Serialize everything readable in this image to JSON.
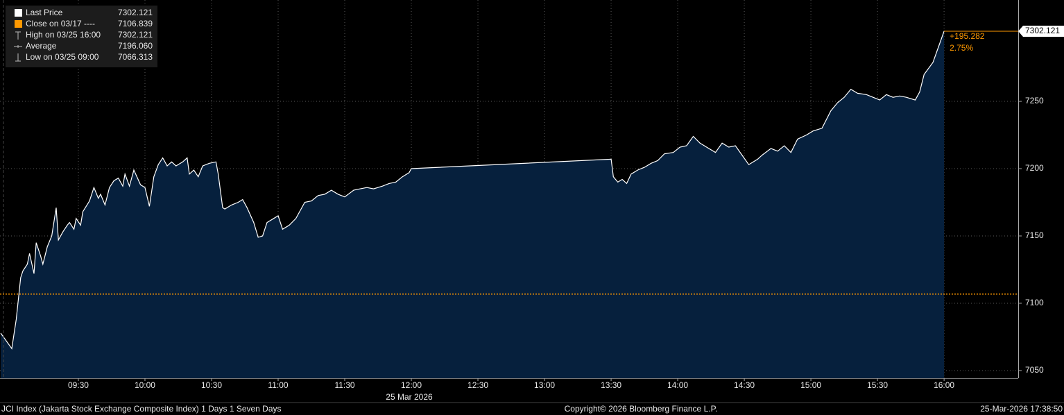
{
  "chart_data": {
    "type": "line",
    "x": [
      535,
      540,
      542,
      544,
      545,
      547,
      548,
      550,
      551,
      553,
      554,
      556,
      558,
      560,
      561,
      563,
      565,
      566,
      568,
      569,
      571,
      572,
      575,
      577,
      579,
      580,
      582,
      584,
      586,
      588,
      590,
      591,
      593,
      595,
      598,
      600,
      602,
      604,
      606,
      608,
      610,
      612,
      614,
      617,
      619,
      620,
      622,
      624,
      626,
      629,
      632,
      633,
      635,
      636,
      639,
      642,
      644,
      646,
      649,
      651,
      653,
      655,
      658,
      660,
      662,
      665,
      668,
      672,
      675,
      678,
      681,
      684,
      687,
      690,
      694,
      697,
      700,
      703,
      707,
      710,
      713,
      716,
      719,
      720,
      810,
      811,
      813,
      815,
      817,
      819,
      822,
      825,
      828,
      831,
      834,
      838,
      841,
      844,
      847,
      850,
      853,
      857,
      860,
      863,
      866,
      869,
      872,
      876,
      878,
      882,
      885,
      888,
      891,
      894,
      898,
      901,
      905,
      909,
      912,
      915,
      918,
      921,
      925,
      928,
      931,
      934,
      937,
      940,
      943,
      947,
      949,
      951,
      955,
      960
    ],
    "series": [
      {
        "name": "Last Price",
        "color": "#ffffff",
        "fill": "#06203d",
        "values": [
          7077.8,
          7066.313,
          7088,
          7119,
          7124,
          7129,
          7137,
          7122,
          7145,
          7135,
          7129,
          7142,
          7150,
          7171,
          7147,
          7153,
          7158,
          7160,
          7155,
          7163,
          7158,
          7168,
          7176,
          7186,
          7178,
          7181,
          7173,
          7186,
          7191,
          7193,
          7187,
          7196,
          7187,
          7199,
          7188,
          7186,
          7172,
          7194,
          7203,
          7208,
          7202,
          7205,
          7202,
          7205,
          7208,
          7196,
          7199,
          7194,
          7202,
          7204,
          7205,
          7196,
          7171,
          7170,
          7173,
          7175,
          7177,
          7171,
          7160,
          7149,
          7150,
          7160,
          7163,
          7165,
          7155,
          7158,
          7163,
          7175,
          7176,
          7180,
          7181,
          7184,
          7181,
          7179,
          7184,
          7185,
          7186,
          7185,
          7187,
          7189,
          7190,
          7194,
          7197,
          7200,
          7207,
          7194,
          7190,
          7192,
          7189,
          7196,
          7199,
          7201,
          7204,
          7206,
          7211,
          7212,
          7216,
          7217,
          7224,
          7219,
          7216,
          7212,
          7219,
          7216,
          7217,
          7210,
          7203,
          7207,
          7210,
          7215,
          7213,
          7217,
          7212,
          7222,
          7225,
          7228,
          7230,
          7243,
          7249,
          7253,
          7259,
          7256,
          7255,
          7253,
          7251,
          7255,
          7253,
          7254,
          7253,
          7251,
          7257,
          7270,
          7279,
          7302.121
        ]
      }
    ],
    "legend": [
      {
        "name": "Last Price",
        "value": 7302.121
      },
      {
        "name": "Close on 03/17 ----",
        "value": 7106.839,
        "color": "#ff9900"
      },
      {
        "name": "High on 03/25 16:00",
        "value": 7302.121
      },
      {
        "name": "Average",
        "value": {
          "value": 7196.06,
          "label": "7196.060"
        }
      },
      {
        "name": "Low on 03/25 09:00",
        "value": 7066.313
      }
    ],
    "change": {
      "value": 195.282,
      "label": "+195.282"
    },
    "change_pct": {
      "value": 2.75,
      "label": "2.75%"
    },
    "xlim": [
      534.7,
      993.4
    ],
    "xticks": [
      {
        "value": 570,
        "label": "09:30"
      },
      {
        "value": 600,
        "label": "10:00"
      },
      {
        "value": 630,
        "label": "10:30"
      },
      {
        "value": 660,
        "label": "11:00"
      },
      {
        "value": 690,
        "label": "11:30"
      },
      {
        "value": 720,
        "label": "12:00"
      },
      {
        "value": 750,
        "label": "12:30"
      },
      {
        "value": 780,
        "label": "13:00"
      },
      {
        "value": 810,
        "label": "13:30"
      },
      {
        "value": 840,
        "label": "14:00"
      },
      {
        "value": 870,
        "label": "14:30"
      },
      {
        "value": 900,
        "label": "15:00"
      },
      {
        "value": 930,
        "label": "15:30"
      },
      {
        "value": 960,
        "label": "16:00"
      }
    ],
    "ylim": [
      7044.3,
      7325.3
    ],
    "yticks": [
      7050,
      7100,
      7150,
      7200,
      7250
    ],
    "grid": true,
    "x_date_label": "25 Mar 2026",
    "footer_left": "JCI Index (Jakarta Stock Exchange Composite Index) 1 Days 1 Seven Days",
    "footer_center": "Copyright© 2026 Bloomberg Finance L.P.",
    "footer_right": "25-Mar-2026 17:38:50"
  }
}
